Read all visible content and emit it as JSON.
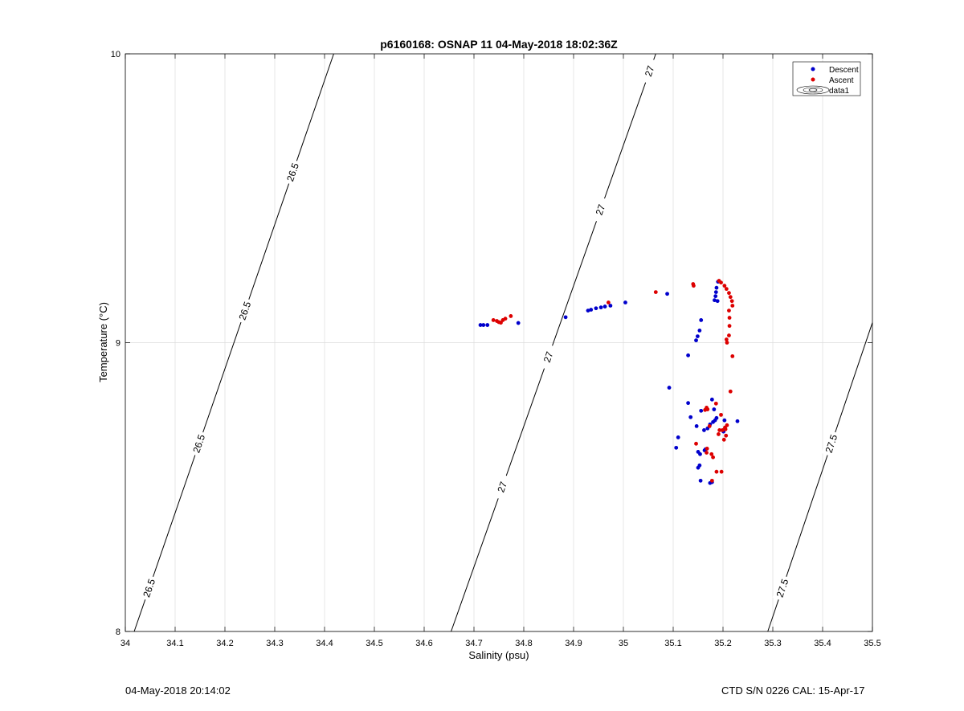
{
  "chart_data": {
    "type": "scatter",
    "title": "p6160168: OSNAP 11 04-May-2018 18:02:36Z",
    "xlabel": "Salinity (psu)",
    "ylabel": "Temperature (°C)",
    "xlim": [
      34,
      35.5
    ],
    "ylim": [
      8,
      10
    ],
    "x_ticks": [
      "34",
      "34.1",
      "34.2",
      "34.3",
      "34.4",
      "34.5",
      "34.6",
      "34.7",
      "34.8",
      "34.9",
      "35",
      "35.1",
      "35.2",
      "35.3",
      "35.4",
      "35.5"
    ],
    "y_ticks": [
      "8",
      "9",
      "10"
    ],
    "grid": true,
    "legend_position": "top-right",
    "legend": [
      "Descent",
      "Ascent",
      "data1"
    ],
    "colors": {
      "descent": "#0000cc",
      "ascent": "#dd0000",
      "contour": "#000000",
      "grid": "#dddddd"
    },
    "series": [
      {
        "name": "Descent",
        "color": "#0000cc",
        "points": [
          [
            34.713,
            9.061
          ],
          [
            34.719,
            9.061
          ],
          [
            34.727,
            9.061
          ],
          [
            34.789,
            9.068
          ],
          [
            34.884,
            9.088
          ],
          [
            34.929,
            9.111
          ],
          [
            34.935,
            9.114
          ],
          [
            34.945,
            9.119
          ],
          [
            34.955,
            9.122
          ],
          [
            34.963,
            9.125
          ],
          [
            34.974,
            9.128
          ],
          [
            35.004,
            9.139
          ],
          [
            35.088,
            9.169
          ],
          [
            35.19,
            9.211
          ],
          [
            35.187,
            9.19
          ],
          [
            35.186,
            9.175
          ],
          [
            35.185,
            9.161
          ],
          [
            35.183,
            9.147
          ],
          [
            35.189,
            9.144
          ],
          [
            35.156,
            9.078
          ],
          [
            35.153,
            9.042
          ],
          [
            35.149,
            9.022
          ],
          [
            35.146,
            9.008
          ],
          [
            35.13,
            8.956
          ],
          [
            35.092,
            8.844
          ],
          [
            35.13,
            8.791
          ],
          [
            35.178,
            8.803
          ],
          [
            35.156,
            8.764
          ],
          [
            35.182,
            8.769
          ],
          [
            35.135,
            8.742
          ],
          [
            35.187,
            8.739
          ],
          [
            35.184,
            8.731
          ],
          [
            35.203,
            8.731
          ],
          [
            35.229,
            8.728
          ],
          [
            35.174,
            8.717
          ],
          [
            35.169,
            8.703
          ],
          [
            35.147,
            8.711
          ],
          [
            35.162,
            8.697
          ],
          [
            35.11,
            8.672
          ],
          [
            35.106,
            8.636
          ],
          [
            35.165,
            8.631
          ],
          [
            35.154,
            8.614
          ],
          [
            35.15,
            8.567
          ],
          [
            35.153,
            8.575
          ],
          [
            35.155,
            8.522
          ],
          [
            35.174,
            8.514
          ],
          [
            35.178,
            8.517
          ],
          [
            35.15,
            8.622
          ],
          [
            35.18,
            8.725
          ],
          [
            35.163,
            8.627
          ],
          [
            35.201,
            8.692
          ]
        ]
      },
      {
        "name": "Ascent",
        "color": "#dd0000",
        "points": [
          [
            34.739,
            9.078
          ],
          [
            34.746,
            9.075
          ],
          [
            34.75,
            9.071
          ],
          [
            34.754,
            9.069
          ],
          [
            34.758,
            9.078
          ],
          [
            34.763,
            9.083
          ],
          [
            34.774,
            9.092
          ],
          [
            34.97,
            9.139
          ],
          [
            35.065,
            9.175
          ],
          [
            35.14,
            9.203
          ],
          [
            35.141,
            9.197
          ],
          [
            35.192,
            9.214
          ],
          [
            35.196,
            9.208
          ],
          [
            35.203,
            9.197
          ],
          [
            35.207,
            9.186
          ],
          [
            35.212,
            9.172
          ],
          [
            35.215,
            9.158
          ],
          [
            35.218,
            9.144
          ],
          [
            35.219,
            9.128
          ],
          [
            35.212,
            9.111
          ],
          [
            35.213,
            9.086
          ],
          [
            35.213,
            9.058
          ],
          [
            35.212,
            9.025
          ],
          [
            35.207,
            9.011
          ],
          [
            35.208,
            9.0
          ],
          [
            35.219,
            8.953
          ],
          [
            35.215,
            8.831
          ],
          [
            35.186,
            8.789
          ],
          [
            35.167,
            8.775
          ],
          [
            35.164,
            8.767
          ],
          [
            35.169,
            8.769
          ],
          [
            35.196,
            8.75
          ],
          [
            35.208,
            8.714
          ],
          [
            35.204,
            8.706
          ],
          [
            35.205,
            8.7
          ],
          [
            35.199,
            8.697
          ],
          [
            35.193,
            8.697
          ],
          [
            35.191,
            8.683
          ],
          [
            35.206,
            8.678
          ],
          [
            35.202,
            8.664
          ],
          [
            35.173,
            8.711
          ],
          [
            35.146,
            8.65
          ],
          [
            35.167,
            8.619
          ],
          [
            35.177,
            8.614
          ],
          [
            35.18,
            8.603
          ],
          [
            35.187,
            8.553
          ],
          [
            35.197,
            8.553
          ],
          [
            35.178,
            8.522
          ],
          [
            35.168,
            8.633
          ]
        ]
      }
    ],
    "contours": [
      {
        "label": "26.5",
        "points": [
          [
            34.0178,
            8.0
          ],
          [
            34.4184,
            10.0
          ]
        ],
        "label_y": [
          8.15,
          8.65,
          9.11,
          9.59
        ]
      },
      {
        "label": "27",
        "points": [
          [
            34.6541,
            8.0
          ],
          [
            35.065,
            10.0
          ]
        ],
        "label_y": [
          8.5,
          8.95,
          9.46,
          9.94
        ]
      },
      {
        "label": "27.5",
        "points": [
          [
            35.2899,
            8.0
          ],
          [
            35.5,
            9.0694
          ]
        ],
        "label_y": [
          8.15,
          8.65
        ]
      }
    ]
  },
  "footer": {
    "left": "04-May-2018 20:14:02",
    "right": "CTD S/N 0226  CAL: 15-Apr-17"
  }
}
